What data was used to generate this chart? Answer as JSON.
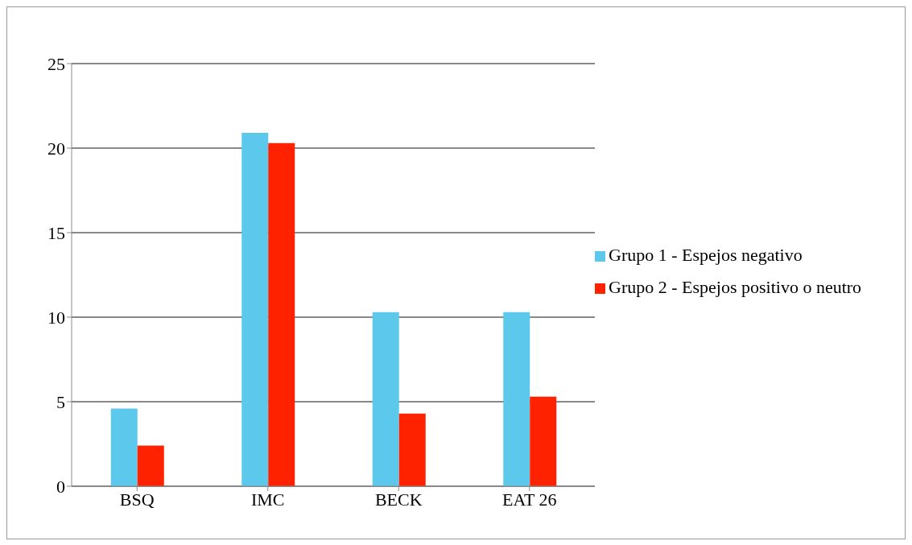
{
  "chart_data": {
    "type": "bar",
    "categories": [
      "BSQ",
      "IMC",
      "BECK",
      "EAT 26"
    ],
    "series": [
      {
        "name": "Grupo 1 - Espejos negativo",
        "color": "#5bc8ec",
        "values": [
          4.6,
          20.9,
          10.3,
          10.3
        ]
      },
      {
        "name": "Grupo 2 - Espejos positivo o neutro",
        "color": "#ff2200",
        "values": [
          2.4,
          20.3,
          4.3,
          5.3
        ]
      }
    ],
    "ylim": [
      0,
      25
    ],
    "yticks": [
      0,
      5,
      10,
      15,
      20,
      25
    ],
    "grid": "y",
    "legend": "right"
  }
}
